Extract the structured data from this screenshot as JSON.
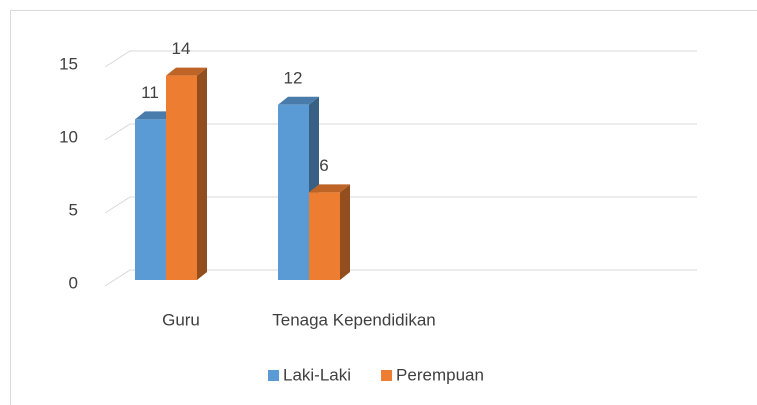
{
  "chart_data": {
    "type": "bar3d",
    "categories": [
      "Guru",
      "Tenaga Kependidikan"
    ],
    "series": [
      {
        "name": "Laki-Laki",
        "color": "#5b9bd5",
        "values": [
          11,
          12
        ]
      },
      {
        "name": "Perempuan",
        "color": "#ed7d31",
        "values": [
          14,
          6
        ]
      }
    ],
    "ylim": [
      0,
      15
    ],
    "yticks": [
      0,
      5,
      10,
      15
    ],
    "grid": true,
    "legend": "bottom"
  }
}
